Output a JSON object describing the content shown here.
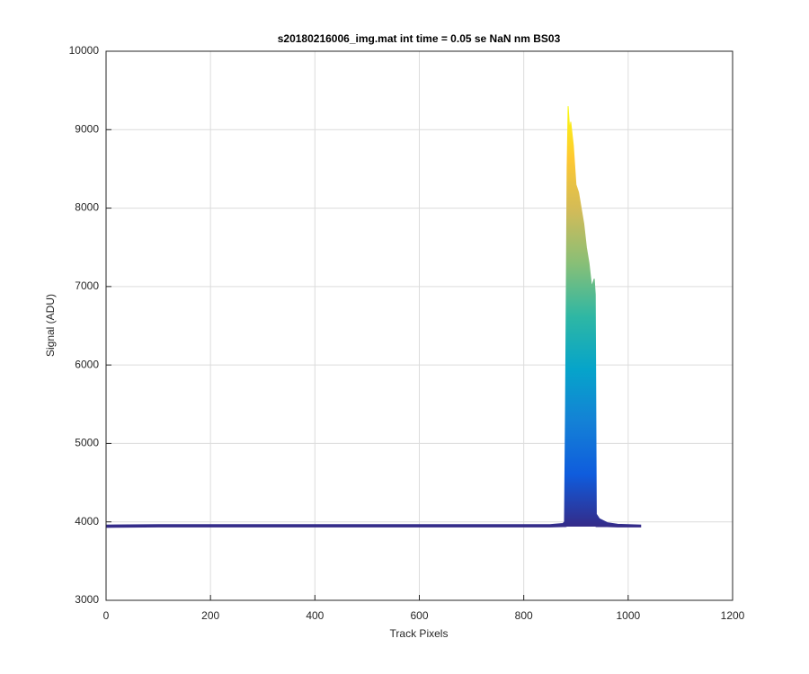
{
  "chart_data": {
    "type": "area",
    "title": "s20180216006_img.mat int time = 0.05 se  NaN nm BS03",
    "xlabel": "Track Pixels",
    "ylabel": "Signal (ADU)",
    "x": [
      0,
      100,
      200,
      300,
      400,
      500,
      600,
      700,
      800,
      850,
      875,
      878,
      880,
      883,
      885,
      888,
      890,
      895,
      900,
      905,
      910,
      915,
      920,
      925,
      930,
      935,
      937,
      939,
      945,
      960,
      980,
      1000,
      1024
    ],
    "series": [
      {
        "values": [
          3960,
          3965,
          3965,
          3965,
          3965,
          3965,
          3965,
          3965,
          3965,
          3965,
          3980,
          4000,
          5500,
          8500,
          9300,
          9000,
          9100,
          8800,
          8300,
          8200,
          8000,
          7800,
          7500,
          7300,
          7000,
          7100,
          6900,
          4100,
          4040,
          3990,
          3970,
          3965,
          3960
        ]
      },
      {
        "values": [
          3930,
          3935,
          3935,
          3935,
          3935,
          3935,
          3935,
          3935,
          3935,
          3935,
          3940,
          3940,
          3940,
          3945,
          3945,
          3945,
          3945,
          3945,
          3945,
          3945,
          3945,
          3945,
          3945,
          3945,
          3945,
          3945,
          3945,
          3940,
          3940,
          3940,
          3935,
          3935,
          3935
        ]
      }
    ],
    "colormap": [
      "#352a87",
      "#0f5cdd",
      "#1481d6",
      "#06a4ca",
      "#2eb7a4",
      "#87bf77",
      "#d1bb59",
      "#fec832",
      "#f9fb0e"
    ],
    "xlim": [
      0,
      1200
    ],
    "xticks": [
      0,
      200,
      400,
      600,
      800,
      1000,
      1200
    ],
    "ylim": [
      3000,
      10000
    ],
    "yticks": [
      3000,
      4000,
      5000,
      6000,
      7000,
      8000,
      9000,
      10000
    ],
    "grid": true
  }
}
